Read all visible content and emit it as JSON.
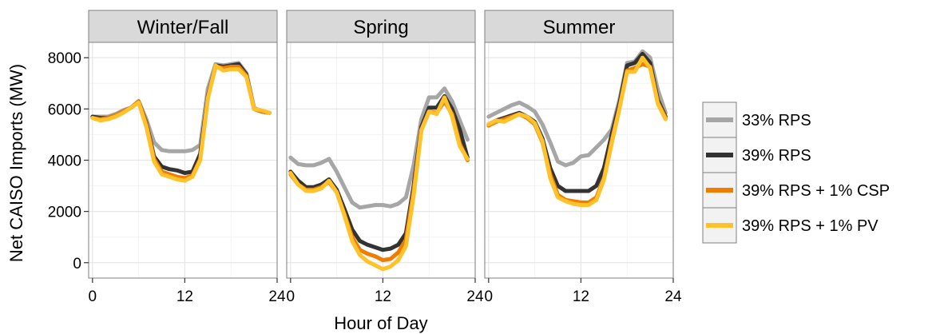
{
  "chart_data": {
    "type": "line",
    "xlabel": "Hour of Day",
    "ylabel": "Net CAISO Imports (MW)",
    "xlim": [
      -0.5,
      24
    ],
    "ylim": [
      -600,
      8600
    ],
    "x_ticks": [
      0,
      12,
      24
    ],
    "y_ticks": [
      0,
      2000,
      4000,
      6000,
      8000
    ],
    "x_tick_labels": [
      "0",
      "12",
      "24"
    ],
    "y_tick_labels": [
      "0",
      "2000",
      "4000",
      "6000",
      "8000"
    ],
    "grid": true,
    "legend_position": "right",
    "colors": {
      "33% RPS": "#a6a6a6",
      "39% RPS": "#333333",
      "39% RPS + 1% CSP": "#f07d00",
      "39% RPS + 1% PV": "#ffc22a"
    },
    "x": [
      0,
      1,
      2,
      3,
      4,
      5,
      6,
      7,
      8,
      9,
      10,
      11,
      12,
      13,
      14,
      15,
      16,
      17,
      18,
      19,
      20,
      21,
      22,
      23
    ],
    "panels": [
      {
        "title": "Winter/Fall",
        "series": [
          {
            "name": "33% RPS",
            "values": [
              5700,
              5700,
              5700,
              5800,
              5950,
              6050,
              6300,
              5600,
              4700,
              4400,
              4350,
              4350,
              4350,
              4400,
              4600,
              6800,
              7750,
              7700,
              7750,
              7800,
              7400,
              6050,
              5900,
              5850
            ]
          },
          {
            "name": "39% RPS",
            "values": [
              5700,
              5650,
              5650,
              5750,
              5900,
              6050,
              6300,
              5450,
              4150,
              3750,
              3650,
              3600,
              3500,
              3550,
              4250,
              6500,
              7700,
              7650,
              7700,
              7750,
              7350,
              6000,
              5900,
              5850
            ]
          },
          {
            "name": "39% RPS + 1% CSP",
            "values": [
              5650,
              5600,
              5650,
              5750,
              5900,
              6050,
              6300,
              5400,
              4050,
              3550,
              3450,
              3350,
              3300,
              3400,
              4050,
              6450,
              7650,
              7600,
              7650,
              7650,
              7300,
              6000,
              5900,
              5850
            ]
          },
          {
            "name": "39% RPS + 1% PV",
            "values": [
              5650,
              5550,
              5600,
              5700,
              5850,
              6050,
              6250,
              5300,
              3950,
              3450,
              3350,
              3250,
              3200,
              3350,
              4000,
              6400,
              7700,
              7500,
              7550,
              7550,
              7250,
              6000,
              5950,
              5850
            ]
          }
        ]
      },
      {
        "title": "Spring",
        "series": [
          {
            "name": "33% RPS",
            "values": [
              4100,
              3850,
              3800,
              3800,
              3900,
              4050,
              3550,
              2950,
              2350,
              2150,
              2200,
              2250,
              2250,
              2200,
              2300,
              2550,
              3800,
              5600,
              6450,
              6450,
              6800,
              6300,
              5550,
              4800
            ]
          },
          {
            "name": "39% RPS",
            "values": [
              3550,
              3200,
              2950,
              2950,
              3050,
              3250,
              2850,
              2100,
              1300,
              850,
              700,
              600,
              500,
              550,
              700,
              1150,
              3000,
              5300,
              6050,
              6050,
              6500,
              6000,
              5200,
              4100
            ]
          },
          {
            "name": "39% RPS + 1% CSP",
            "values": [
              3450,
              3050,
              2850,
              2850,
              2950,
              3150,
              2750,
              1900,
              1000,
              500,
              350,
              250,
              100,
              150,
              400,
              900,
              2800,
              5200,
              5900,
              5850,
              6300,
              5800,
              4650,
              4000
            ]
          },
          {
            "name": "39% RPS + 1% PV",
            "values": [
              3500,
              3050,
              2800,
              2800,
              2900,
              3200,
              2750,
              1850,
              850,
              300,
              50,
              -100,
              -250,
              -150,
              100,
              650,
              2600,
              5150,
              5900,
              5800,
              6450,
              5700,
              4550,
              4050
            ]
          }
        ]
      },
      {
        "title": "Summer",
        "series": [
          {
            "name": "33% RPS",
            "values": [
              5700,
              5850,
              6000,
              6150,
              6250,
              6100,
              5900,
              5400,
              4700,
              3950,
              3800,
              3900,
              4150,
              4200,
              4500,
              4800,
              5200,
              6350,
              7800,
              7850,
              8250,
              8000,
              6750,
              5850
            ]
          },
          {
            "name": "39% RPS",
            "values": [
              5400,
              5550,
              5650,
              5750,
              5850,
              5700,
              5500,
              4850,
              3700,
              3000,
              2800,
              2800,
              2800,
              2800,
              3000,
              3700,
              5000,
              6200,
              7700,
              7800,
              8150,
              7800,
              6350,
              5700
            ]
          },
          {
            "name": "39% RPS + 1% CSP",
            "values": [
              5350,
              5500,
              5600,
              5700,
              5800,
              5650,
              5400,
              4700,
              3450,
              2650,
              2450,
              2400,
              2350,
              2350,
              2550,
              3300,
              4750,
              6050,
              7500,
              7600,
              7750,
              7650,
              6250,
              5650
            ]
          },
          {
            "name": "39% RPS + 1% PV",
            "values": [
              5400,
              5550,
              5500,
              5650,
              5800,
              5700,
              5450,
              4750,
              3300,
              2550,
              2400,
              2300,
              2250,
              2250,
              2450,
              3250,
              4650,
              6000,
              7450,
              7450,
              8000,
              7600,
              6200,
              5600
            ]
          }
        ]
      }
    ]
  }
}
